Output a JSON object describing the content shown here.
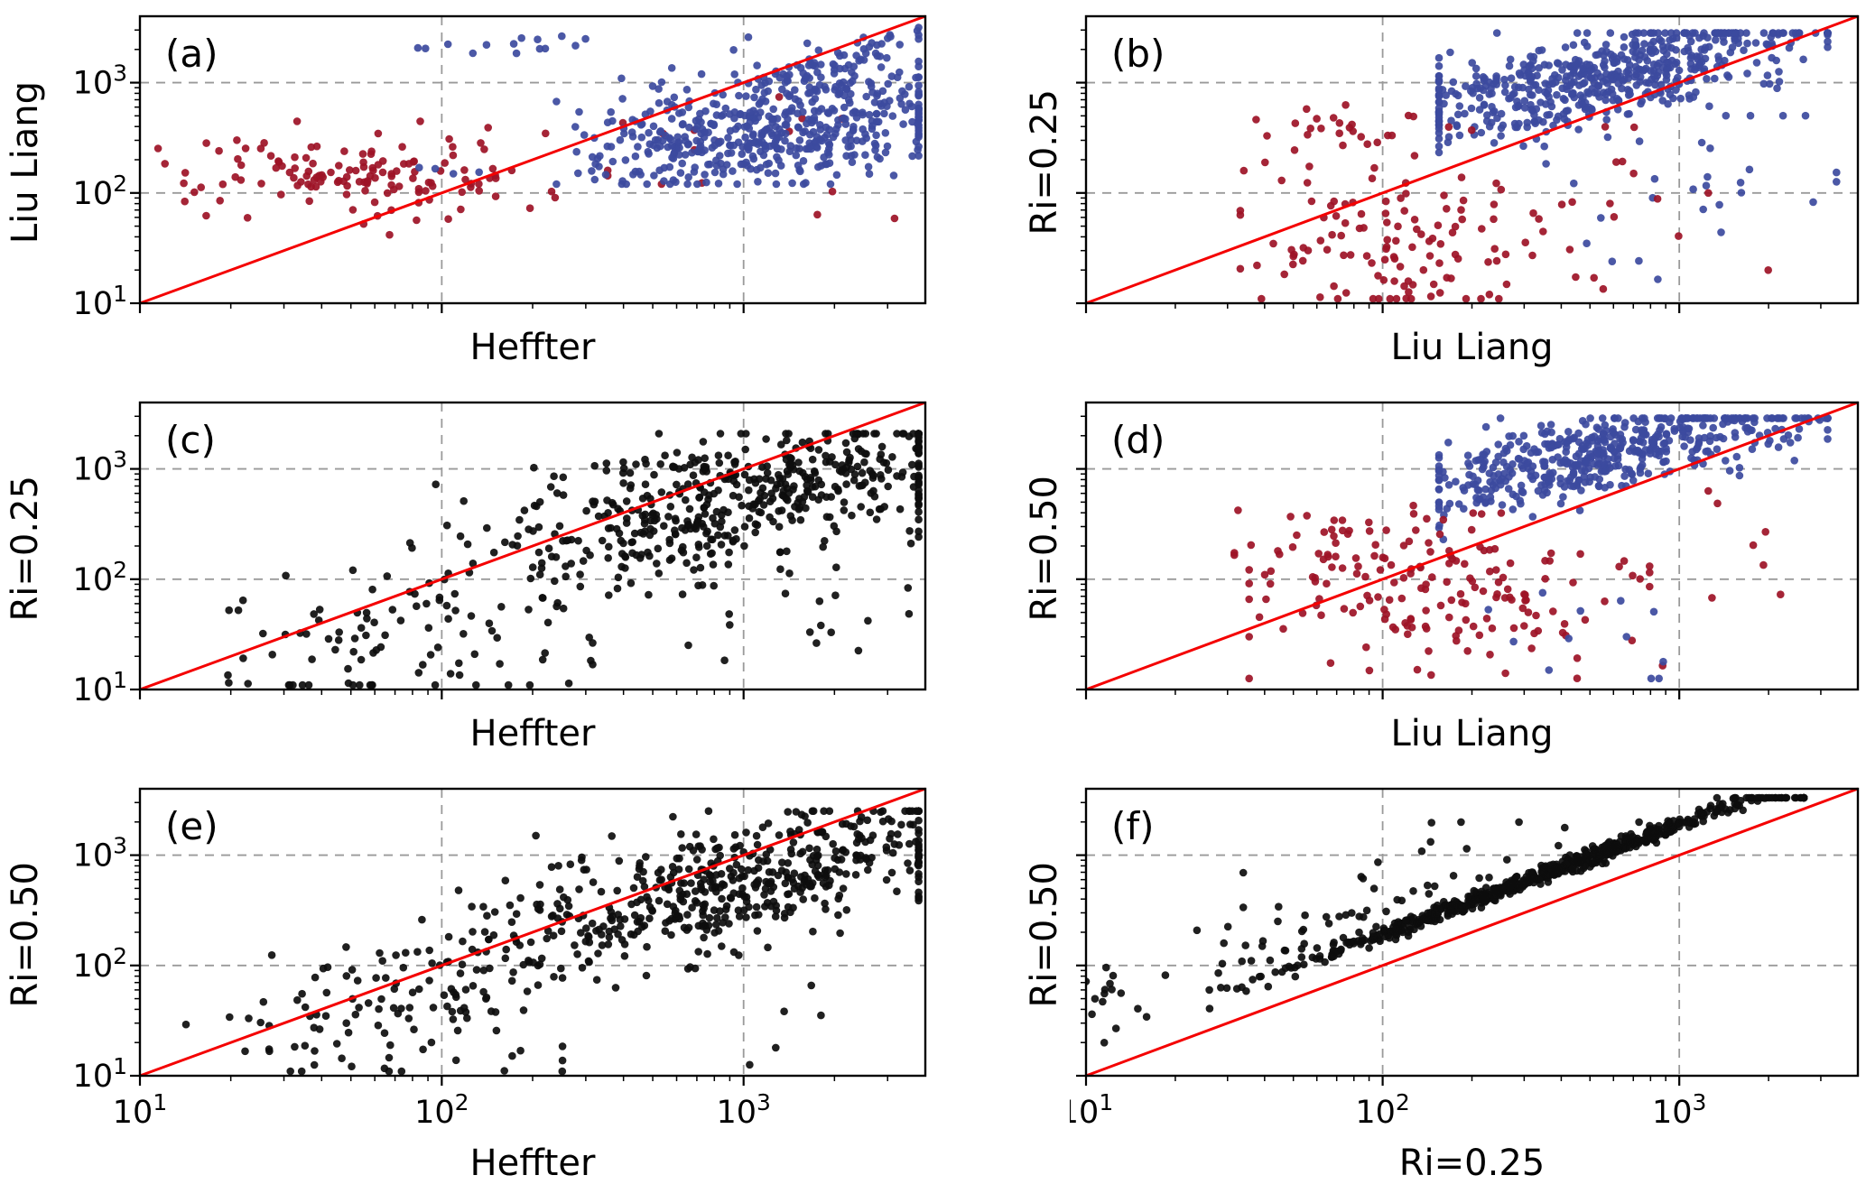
{
  "style": {
    "colors": {
      "red_points": "#9d1226",
      "blue_points": "#3c4a9e",
      "black_points": "#0d0d0d",
      "identity_line": "#f40000",
      "grid": "#9a9a9a",
      "axis": "#000000",
      "text": "#000000",
      "background": "#ffffff"
    }
  },
  "chart_data": {
    "type": "scatter",
    "seed": 7,
    "axes": {
      "x_scale": "log",
      "y_scale": "log",
      "xlim": [
        10,
        4000
      ],
      "ylim": [
        10,
        4000
      ],
      "major_ticks": [
        10,
        100,
        1000
      ],
      "minor_tick_multiples": [
        2,
        3,
        4,
        5,
        6,
        7,
        8,
        9
      ],
      "grid_values": [
        100,
        1000
      ],
      "tick_labels": [
        {
          "value": 10,
          "base": "10",
          "exp": "1"
        },
        {
          "value": 100,
          "base": "10",
          "exp": "2"
        },
        {
          "value": 1000,
          "base": "10",
          "exp": "3"
        }
      ]
    },
    "identity_line": {
      "description": "1:1 reference line",
      "color": "#f40000"
    },
    "subplots": [
      {
        "panel_label": "(a)",
        "xlabel": "Heffter",
        "ylabel": "Liu Liang",
        "show_x_tick_labels": false,
        "show_y_tick_labels": true,
        "clusters": [
          {
            "color": "red",
            "n": 140,
            "lx": {
              "mean": 1.78,
              "sd": 0.3,
              "min": 1.06,
              "max": 2.55
            },
            "ly": {
              "type": "normal",
              "mean": 2.17,
              "sd": 0.2,
              "min": 1.62,
              "max": 2.65
            }
          },
          {
            "color": "red",
            "n": 14,
            "lx": {
              "mean": 3.0,
              "sd": 0.28,
              "min": 2.6,
              "max": 3.5
            },
            "ly": {
              "type": "normal",
              "mean": 2.35,
              "sd": 0.35,
              "min": 1.45,
              "max": 3.1
            }
          },
          {
            "color": "blue",
            "n": 520,
            "lx": {
              "mean": 3.08,
              "sd": 0.29,
              "min": 2.38,
              "max": 3.58
            },
            "ly": {
              "type": "linear",
              "slope": 0.35,
              "intercept": 1.52,
              "noise": 0.26,
              "min": 2.08,
              "max": 3.42
            }
          },
          {
            "color": "blue",
            "n": 60,
            "lx": {
              "mean": 3.3,
              "sd": 0.18,
              "min": 2.9,
              "max": 3.58
            },
            "ly": {
              "type": "linear",
              "slope": 1.0,
              "intercept": -0.12,
              "noise": 0.07,
              "min": 2.8,
              "max": 3.5
            }
          },
          {
            "color": "blue",
            "n": 14,
            "lx": {
              "mean": 2.18,
              "sd": 0.2,
              "min": 1.85,
              "max": 2.6
            },
            "ly": {
              "type": "normal",
              "mean": 3.33,
              "sd": 0.05,
              "min": 3.2,
              "max": 3.45
            }
          },
          {
            "color": "blue",
            "n": 4,
            "lx": {
              "mean": 2.0,
              "sd": 0.15,
              "min": 1.7,
              "max": 2.3
            },
            "ly": {
              "type": "normal",
              "mean": 2.25,
              "sd": 0.1,
              "min": 2.0,
              "max": 2.5
            }
          }
        ]
      },
      {
        "panel_label": "(b)",
        "xlabel": "Liu Liang",
        "ylabel": "Ri=0.25",
        "show_x_tick_labels": false,
        "show_y_tick_labels": false,
        "clusters": [
          {
            "color": "blue",
            "n": 560,
            "lx": {
              "mean": 2.72,
              "sd": 0.33,
              "min": 2.19,
              "max": 3.5
            },
            "ly": {
              "type": "linear",
              "slope": 0.62,
              "intercept": 1.35,
              "noise": 0.2,
              "min": 1.95,
              "max": 3.45
            }
          },
          {
            "color": "blue",
            "n": 30,
            "lx": {
              "mean": 3.0,
              "sd": 0.3,
              "min": 2.35,
              "max": 3.53
            },
            "ly": {
              "type": "normal",
              "mean": 2.0,
              "sd": 0.45,
              "min": 1.12,
              "max": 2.7
            }
          },
          {
            "color": "red",
            "n": 120,
            "lx": {
              "mean": 2.05,
              "sd": 0.3,
              "min": 1.52,
              "max": 2.78
            },
            "ly": {
              "type": "normal",
              "mean": 1.55,
              "sd": 0.38,
              "min": 1.04,
              "max": 2.4
            }
          },
          {
            "color": "red",
            "n": 30,
            "lx": {
              "mean": 1.9,
              "sd": 0.18,
              "min": 1.55,
              "max": 2.3
            },
            "ly": {
              "type": "normal",
              "mean": 2.55,
              "sd": 0.2,
              "min": 2.1,
              "max": 2.95
            }
          },
          {
            "color": "red",
            "n": 12,
            "lx": {
              "mean": 2.85,
              "sd": 0.22,
              "min": 2.5,
              "max": 3.3
            },
            "ly": {
              "type": "normal",
              "mean": 2.1,
              "sd": 0.35,
              "min": 1.3,
              "max": 2.6
            }
          }
        ]
      },
      {
        "panel_label": "(c)",
        "xlabel": "Heffter",
        "ylabel": "Ri=0.25",
        "show_x_tick_labels": false,
        "show_y_tick_labels": true,
        "clusters": [
          {
            "color": "black",
            "n": 520,
            "lx": {
              "mean": 2.95,
              "sd": 0.42,
              "min": 1.3,
              "max": 3.58
            },
            "ly": {
              "type": "linear",
              "slope": 0.62,
              "intercept": 0.9,
              "noise": 0.3,
              "min": 1.05,
              "max": 3.32
            }
          },
          {
            "color": "black",
            "n": 90,
            "lx": {
              "mean": 1.85,
              "sd": 0.3,
              "min": 1.05,
              "max": 2.5
            },
            "ly": {
              "type": "normal",
              "mean": 1.45,
              "sd": 0.3,
              "min": 1.04,
              "max": 2.1
            }
          },
          {
            "color": "black",
            "n": 25,
            "lx": {
              "mean": 3.1,
              "sd": 0.25,
              "min": 2.6,
              "max": 3.55
            },
            "ly": {
              "type": "normal",
              "mean": 1.8,
              "sd": 0.4,
              "min": 1.05,
              "max": 2.5
            }
          }
        ]
      },
      {
        "panel_label": "(d)",
        "xlabel": "Liu Liang",
        "ylabel": "Ri=0.50",
        "show_x_tick_labels": false,
        "show_y_tick_labels": false,
        "clusters": [
          {
            "color": "blue",
            "n": 520,
            "lx": {
              "mean": 2.78,
              "sd": 0.33,
              "min": 2.19,
              "max": 3.5
            },
            "ly": {
              "type": "linear",
              "slope": 0.62,
              "intercept": 1.45,
              "noise": 0.18,
              "min": 2.0,
              "max": 3.46
            }
          },
          {
            "color": "red",
            "n": 150,
            "lx": {
              "mean": 2.2,
              "sd": 0.3,
              "min": 1.55,
              "max": 3.05
            },
            "ly": {
              "type": "normal",
              "mean": 1.85,
              "sd": 0.35,
              "min": 1.1,
              "max": 2.6
            }
          },
          {
            "color": "red",
            "n": 35,
            "lx": {
              "mean": 1.85,
              "sd": 0.2,
              "min": 1.5,
              "max": 2.3
            },
            "ly": {
              "type": "normal",
              "mean": 2.35,
              "sd": 0.25,
              "min": 1.8,
              "max": 2.85
            }
          },
          {
            "color": "blue",
            "n": 12,
            "lx": {
              "mean": 2.6,
              "sd": 0.3,
              "min": 2.2,
              "max": 3.2
            },
            "ly": {
              "type": "normal",
              "mean": 1.6,
              "sd": 0.3,
              "min": 1.1,
              "max": 2.2
            }
          },
          {
            "color": "red",
            "n": 10,
            "lx": {
              "mean": 3.2,
              "sd": 0.2,
              "min": 2.9,
              "max": 3.5
            },
            "ly": {
              "type": "normal",
              "mean": 2.3,
              "sd": 0.3,
              "min": 1.7,
              "max": 2.8
            }
          }
        ]
      },
      {
        "panel_label": "(e)",
        "xlabel": "Heffter",
        "ylabel": "Ri=0.50",
        "show_x_tick_labels": true,
        "show_y_tick_labels": true,
        "clusters": [
          {
            "color": "black",
            "n": 540,
            "lx": {
              "mean": 2.9,
              "sd": 0.45,
              "min": 1.4,
              "max": 3.58
            },
            "ly": {
              "type": "linear",
              "slope": 0.72,
              "intercept": 0.62,
              "noise": 0.28,
              "min": 1.05,
              "max": 3.4
            }
          },
          {
            "color": "black",
            "n": 90,
            "lx": {
              "mean": 1.8,
              "sd": 0.28,
              "min": 1.02,
              "max": 2.4
            },
            "ly": {
              "type": "normal",
              "mean": 1.5,
              "sd": 0.32,
              "min": 1.04,
              "max": 2.2
            }
          },
          {
            "color": "black",
            "n": 15,
            "lx": {
              "mean": 3.0,
              "sd": 0.3,
              "min": 2.5,
              "max": 3.5
            },
            "ly": {
              "type": "normal",
              "mean": 1.9,
              "sd": 0.4,
              "min": 1.1,
              "max": 2.5
            }
          }
        ]
      },
      {
        "panel_label": "(f)",
        "xlabel": "Ri=0.25",
        "ylabel": "Ri=0.50",
        "show_x_tick_labels": true,
        "show_y_tick_labels": false,
        "clusters": [
          {
            "color": "black",
            "n": 620,
            "lx": {
              "mean": 2.55,
              "sd": 0.42,
              "min": 1.02,
              "max": 3.42
            },
            "ly": {
              "type": "linear",
              "slope": 1.0,
              "intercept": 0.28,
              "noise": 0.04,
              "min": 1.1,
              "max": 3.52
            }
          },
          {
            "color": "black",
            "n": 70,
            "lx": {
              "mean": 1.9,
              "sd": 0.45,
              "min": 1.02,
              "max": 3.0
            },
            "ly": {
              "type": "linear",
              "slope": 1.0,
              "intercept": 0.3,
              "noise": 0.35,
              "bias": "up",
              "min": 1.2,
              "max": 3.3
            }
          },
          {
            "color": "black",
            "n": 12,
            "lx": {
              "mean": 1.05,
              "sd": 0.04,
              "min": 1.0,
              "max": 1.15
            },
            "ly": {
              "type": "normal",
              "mean": 2.0,
              "sd": 0.4,
              "min": 1.3,
              "max": 2.85
            }
          }
        ]
      }
    ]
  }
}
